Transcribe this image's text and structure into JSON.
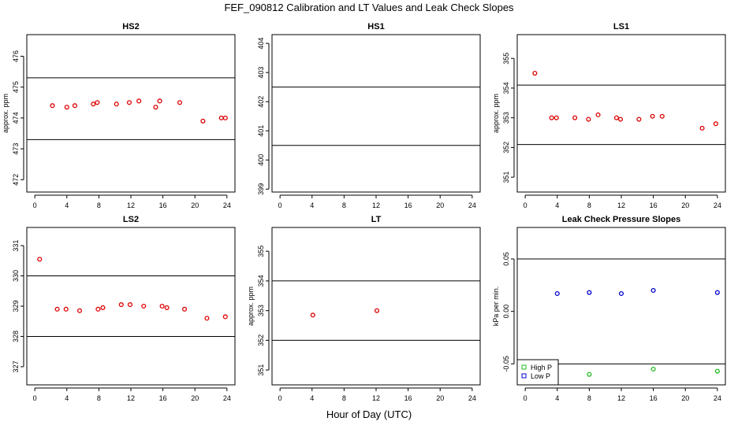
{
  "title": "FEF_090812  Calibration and LT Values and Leak Check Slopes",
  "x_label": "Hour of Day (UTC)",
  "chart_data": [
    {
      "type": "scatter",
      "title": "HS2",
      "ylabel": "approx. ppm",
      "xlim": [
        -1,
        25
      ],
      "ylim": [
        471.6,
        476.7
      ],
      "xticks": [
        0,
        4,
        8,
        12,
        16,
        20,
        24
      ],
      "yticks": [
        472,
        473,
        474,
        475,
        476
      ],
      "hlines": [
        475.3,
        473.3
      ],
      "series": [
        {
          "color": "#dd0000",
          "x": [
            2.2,
            4,
            5,
            7.3,
            7.8,
            10.2,
            11.8,
            13,
            15.1,
            15.6,
            18.1,
            21,
            23.3,
            23.8
          ],
          "y": [
            474.4,
            474.35,
            474.4,
            474.45,
            474.5,
            474.45,
            474.5,
            474.55,
            474.35,
            474.55,
            474.5,
            473.9,
            474,
            474
          ]
        }
      ]
    },
    {
      "type": "scatter",
      "title": "HS1",
      "ylabel": "",
      "xlim": [
        -1,
        25
      ],
      "ylim": [
        398.9,
        404.3
      ],
      "xticks": [
        0,
        4,
        8,
        12,
        16,
        20,
        24
      ],
      "yticks": [
        399,
        400,
        401,
        402,
        403,
        404
      ],
      "hlines": [
        402.5,
        400.5
      ],
      "series": []
    },
    {
      "type": "scatter",
      "title": "LS1",
      "ylabel": "approx. ppm",
      "xlim": [
        -1,
        25
      ],
      "ylim": [
        350.5,
        355.8
      ],
      "xticks": [
        0,
        4,
        8,
        12,
        16,
        20,
        24
      ],
      "yticks": [
        351,
        352,
        353,
        354,
        355
      ],
      "hlines": [
        354.1,
        352.1
      ],
      "series": [
        {
          "color": "#dd0000",
          "x": [
            1.2,
            3.3,
            3.9,
            6.2,
            7.9,
            9.1,
            11.4,
            11.9,
            14.2,
            15.9,
            17.1,
            22.1,
            23.8
          ],
          "y": [
            354.5,
            353,
            353,
            353,
            352.95,
            353.1,
            353,
            352.95,
            352.95,
            353.05,
            353.05,
            352.65,
            352.8
          ]
        }
      ]
    },
    {
      "type": "scatter",
      "title": "LS2",
      "ylabel": "",
      "xlim": [
        -1,
        25
      ],
      "ylim": [
        326.4,
        331.6
      ],
      "xticks": [
        0,
        4,
        8,
        12,
        16,
        20,
        24
      ],
      "yticks": [
        327,
        328,
        329,
        330,
        331
      ],
      "hlines": [
        330,
        328
      ],
      "series": [
        {
          "color": "#dd0000",
          "x": [
            0.6,
            2.8,
            3.9,
            5.6,
            7.9,
            8.5,
            10.8,
            11.9,
            13.6,
            15.9,
            16.5,
            18.7,
            21.5,
            23.8
          ],
          "y": [
            330.55,
            328.9,
            328.9,
            328.85,
            328.9,
            328.95,
            329.05,
            329.05,
            329,
            329,
            328.95,
            328.9,
            328.6,
            328.65
          ]
        }
      ]
    },
    {
      "type": "scatter",
      "title": "LT",
      "ylabel": "approx. ppm",
      "xlim": [
        -1,
        25
      ],
      "ylim": [
        350.5,
        355.8
      ],
      "xticks": [
        0,
        4,
        8,
        12,
        16,
        20,
        24
      ],
      "yticks": [
        351,
        352,
        353,
        354,
        355
      ],
      "hlines": [
        354,
        352
      ],
      "series": [
        {
          "color": "#dd0000",
          "x": [
            4.1,
            12.1
          ],
          "y": [
            352.85,
            353
          ]
        }
      ]
    },
    {
      "type": "scatter",
      "title": "Leak Check Pressure Slopes",
      "ylabel": "kPa per min.",
      "xlim": [
        -1,
        25
      ],
      "ylim": [
        -0.07,
        0.08
      ],
      "xticks": [
        0,
        4,
        8,
        12,
        16,
        20,
        24
      ],
      "yticks": [
        -0.05,
        0,
        0.05
      ],
      "ytick_labels": [
        "-0.05",
        "0.00",
        "0.05"
      ],
      "hlines": [
        0.05,
        -0.05
      ],
      "legend": {
        "placement": "bottom-left",
        "entries": [
          {
            "label": "High P",
            "color": "#22bb22"
          },
          {
            "label": "Low P",
            "color": "#0000cc"
          }
        ]
      },
      "series": [
        {
          "name": "High P",
          "color": "#22bb22",
          "x": [
            8,
            16,
            24
          ],
          "y": [
            -0.06,
            -0.055,
            -0.057
          ]
        },
        {
          "name": "Low P",
          "color": "#0000cc",
          "x": [
            4,
            8,
            12,
            16,
            24
          ],
          "y": [
            0.017,
            0.018,
            0.017,
            0.02,
            0.018
          ]
        }
      ]
    }
  ]
}
